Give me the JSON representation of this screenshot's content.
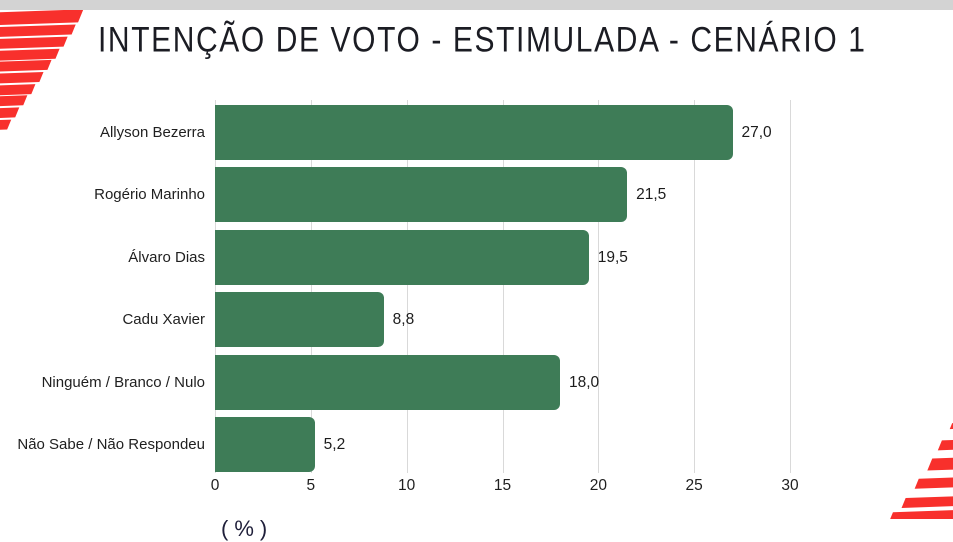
{
  "header": {
    "title": "INTENÇÃO DE VOTO - ESTIMULADA - CENÁRIO 1"
  },
  "chart_data": {
    "type": "bar",
    "orientation": "horizontal",
    "title": "INTENÇÃO DE VOTO - ESTIMULADA - CENÁRIO 1",
    "categories": [
      "Allyson Bezerra",
      "Rogério Marinho",
      "Álvaro Dias",
      "Cadu Xavier",
      "Ninguém / Branco / Nulo",
      "Não Sabe / Não Respondeu"
    ],
    "values": [
      27.0,
      21.5,
      19.5,
      8.8,
      18.0,
      5.2
    ],
    "value_labels": [
      "27,0",
      "21,5",
      "19,5",
      "8,8",
      "18,0",
      "5,2"
    ],
    "x_ticks": [
      0,
      5,
      10,
      15,
      20,
      25,
      30
    ],
    "xlim": [
      0,
      30
    ],
    "xlabel": "(%)",
    "ylabel": "",
    "grid": true,
    "legend": "none",
    "bar_color": "#3e7c57"
  },
  "footer": {
    "axis_caption": "(%)"
  },
  "colors": {
    "bar_green": "#3e7c57",
    "brand_red": "#f8302c",
    "top_strip_gray": "#d3d3d3",
    "gridline_gray": "#d9d9d9",
    "title_text": "#1b1c23",
    "label_text": "#1f1f1f",
    "background": "#ffffff"
  }
}
